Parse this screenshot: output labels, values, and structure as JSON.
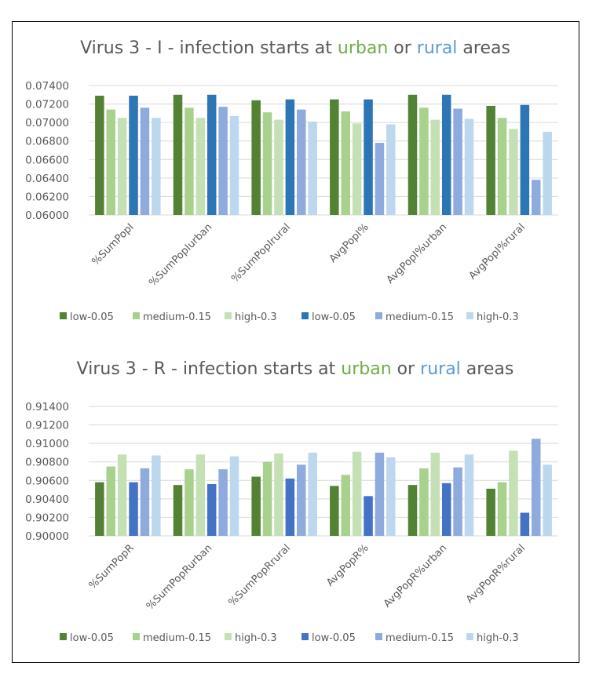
{
  "chart_data": [
    {
      "type": "bar",
      "title": {
        "prefix": "Virus 3 - I - infection starts at ",
        "urban": "urban",
        "middle": " or ",
        "rural": "rural",
        "suffix": " areas",
        "urban_color": "#70AD47",
        "rural_color": "#5B9BD5"
      },
      "categories": [
        "%SumPopI",
        "%SumPopIurban",
        "%SumPopIrural",
        "AvgPopI%",
        "AvgPopI%urban",
        "AvgPopI%rural"
      ],
      "ylim": [
        0.06,
        0.074
      ],
      "yticks": [
        "0.06000",
        "0.06200",
        "0.06400",
        "0.06600",
        "0.06800",
        "0.07000",
        "0.07200",
        "0.07400"
      ],
      "grid": true,
      "legend_position": "bottom",
      "series": [
        {
          "name": "low-0.05",
          "color": "#548235",
          "values": [
            0.0729,
            0.073,
            0.0724,
            0.0725,
            0.073,
            0.0718
          ]
        },
        {
          "name": "medium-0.15",
          "color": "#A9D18E",
          "values": [
            0.0714,
            0.0716,
            0.0711,
            0.0712,
            0.0716,
            0.0705
          ]
        },
        {
          "name": "high-0.3",
          "color": "#C5E0B4",
          "values": [
            0.0705,
            0.0705,
            0.0703,
            0.0699,
            0.0703,
            0.0693
          ]
        },
        {
          "name": "low-0.05",
          "color": "#2E75B6",
          "values": [
            0.0729,
            0.073,
            0.0725,
            0.0725,
            0.073,
            0.0719
          ]
        },
        {
          "name": "medium-0.15",
          "color": "#8FAADC",
          "values": [
            0.0716,
            0.0717,
            0.0714,
            0.0678,
            0.0715,
            0.0638
          ]
        },
        {
          "name": "high-0.3",
          "color": "#BDD7EE",
          "values": [
            0.0705,
            0.0707,
            0.0701,
            0.0698,
            0.0704,
            0.069
          ]
        }
      ]
    },
    {
      "type": "bar",
      "title": {
        "prefix": "Virus 3 - R - infection starts at ",
        "urban": "urban",
        "middle": " or ",
        "rural": "rural",
        "suffix": " areas",
        "urban_color": "#70AD47",
        "rural_color": "#5B9BD5"
      },
      "categories": [
        "%SumPopR",
        "%SumPopRurban",
        "%SumPopRrural",
        "AvgPopR%",
        "AvgPopR%urban",
        "AvgPopR%rural"
      ],
      "ylim": [
        0.9,
        0.914
      ],
      "yticks": [
        "0.90000",
        "0.90200",
        "0.90400",
        "0.90600",
        "0.90800",
        "0.91000",
        "0.91200",
        "0.91400"
      ],
      "grid": true,
      "legend_position": "bottom",
      "series": [
        {
          "name": "low-0.05",
          "color": "#548235",
          "values": [
            0.9058,
            0.9055,
            0.9064,
            0.9054,
            0.9055,
            0.9051
          ]
        },
        {
          "name": "medium-0.15",
          "color": "#A9D18E",
          "values": [
            0.9075,
            0.9072,
            0.908,
            0.9066,
            0.9073,
            0.9058
          ]
        },
        {
          "name": "high-0.3",
          "color": "#C5E0B4",
          "values": [
            0.9088,
            0.9088,
            0.9089,
            0.9091,
            0.909,
            0.9092
          ]
        },
        {
          "name": "low-0.05",
          "color": "#4472C4",
          "values": [
            0.9058,
            0.9056,
            0.9062,
            0.9043,
            0.9057,
            0.9025
          ]
        },
        {
          "name": "medium-0.15",
          "color": "#8FAADC",
          "values": [
            0.9073,
            0.9072,
            0.9077,
            0.909,
            0.9074,
            0.9105
          ]
        },
        {
          "name": "high-0.3",
          "color": "#BDD7EE",
          "values": [
            0.9087,
            0.9086,
            0.909,
            0.9085,
            0.9088,
            0.9077
          ]
        }
      ]
    }
  ]
}
